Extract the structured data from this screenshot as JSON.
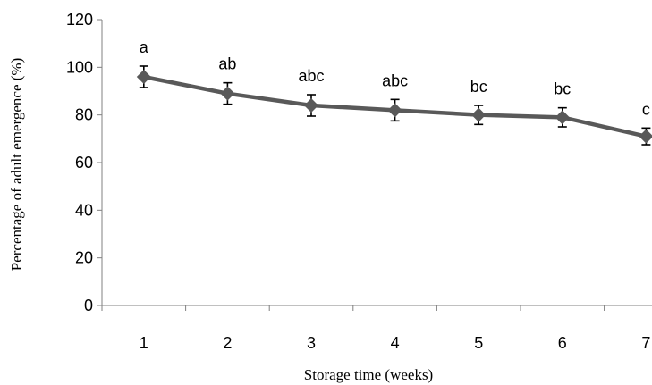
{
  "chart_data": {
    "type": "line",
    "xlabel": "Storage time (weeks)",
    "ylabel": "Percentage of adult emergence (%)",
    "x": [
      1,
      2,
      3,
      4,
      5,
      6,
      7
    ],
    "x_tick_labels": [
      "1",
      "2",
      "3",
      "4",
      "5",
      "6",
      "7"
    ],
    "ylim": [
      0,
      120
    ],
    "y_ticks": [
      0,
      20,
      40,
      60,
      80,
      100,
      120
    ],
    "y_tick_labels": [
      "0",
      "20",
      "40",
      "60",
      "80",
      "100",
      "120"
    ],
    "grid": false,
    "series": [
      {
        "values": [
          96,
          89,
          84,
          82,
          80,
          79,
          71
        ],
        "error": [
          4.5,
          4.5,
          4.5,
          4.5,
          4,
          4,
          3.5
        ],
        "significance_labels": [
          "a",
          "ab",
          "abc",
          "abc",
          "bc",
          "bc",
          "c"
        ],
        "color": "#595959"
      }
    ]
  }
}
